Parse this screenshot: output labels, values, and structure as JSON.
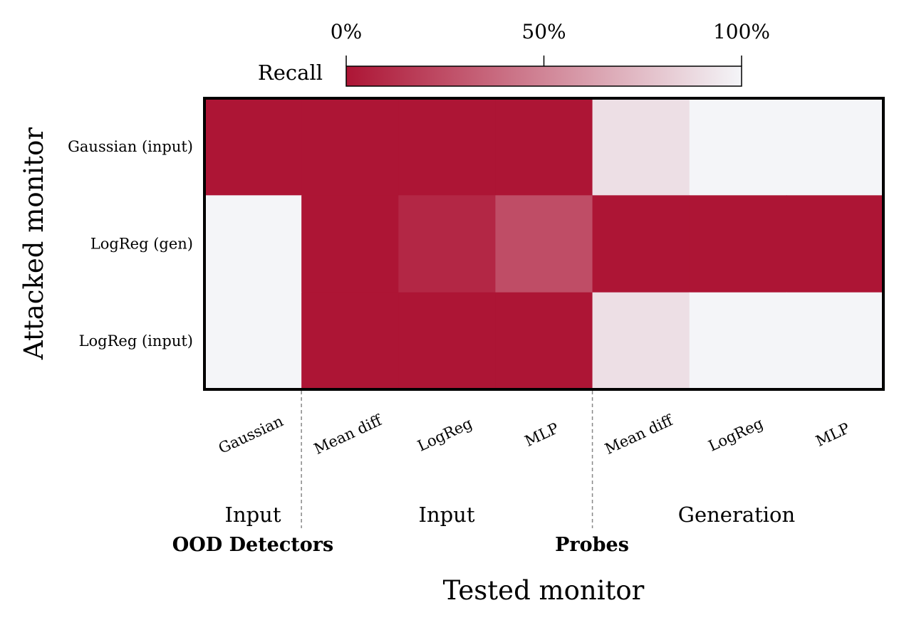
{
  "chart_data": {
    "type": "heatmap",
    "xlabel": "Tested monitor",
    "ylabel": "Attacked monitor",
    "colorbar": {
      "label": "Recall",
      "ticks": [
        "0%",
        "50%",
        "100%"
      ],
      "range": [
        0,
        100
      ],
      "low_color": "#ad1535",
      "high_color": "#f4f5f8"
    },
    "columns": [
      "Gaussian",
      "Mean diff",
      "LogReg",
      "MLP",
      "Mean diff",
      "LogReg",
      "MLP"
    ],
    "rows": [
      "Gaussian (input)",
      "LogReg (gen)",
      "LogReg (input)"
    ],
    "values": [
      [
        0,
        0,
        0,
        0,
        90,
        100,
        100
      ],
      [
        100,
        0,
        8,
        25,
        0,
        0,
        0
      ],
      [
        100,
        0,
        0,
        0,
        90,
        100,
        100
      ]
    ],
    "column_groups": [
      {
        "sublabel": "Input",
        "label": "OOD Detectors",
        "start": 0,
        "end": 0
      },
      {
        "sublabel": "Input",
        "label": "",
        "start": 1,
        "end": 3
      },
      {
        "sublabel": "Generation",
        "label": "",
        "start": 4,
        "end": 6
      }
    ],
    "group_labels": {
      "ood": "OOD Detectors",
      "probes": "Probes"
    }
  }
}
